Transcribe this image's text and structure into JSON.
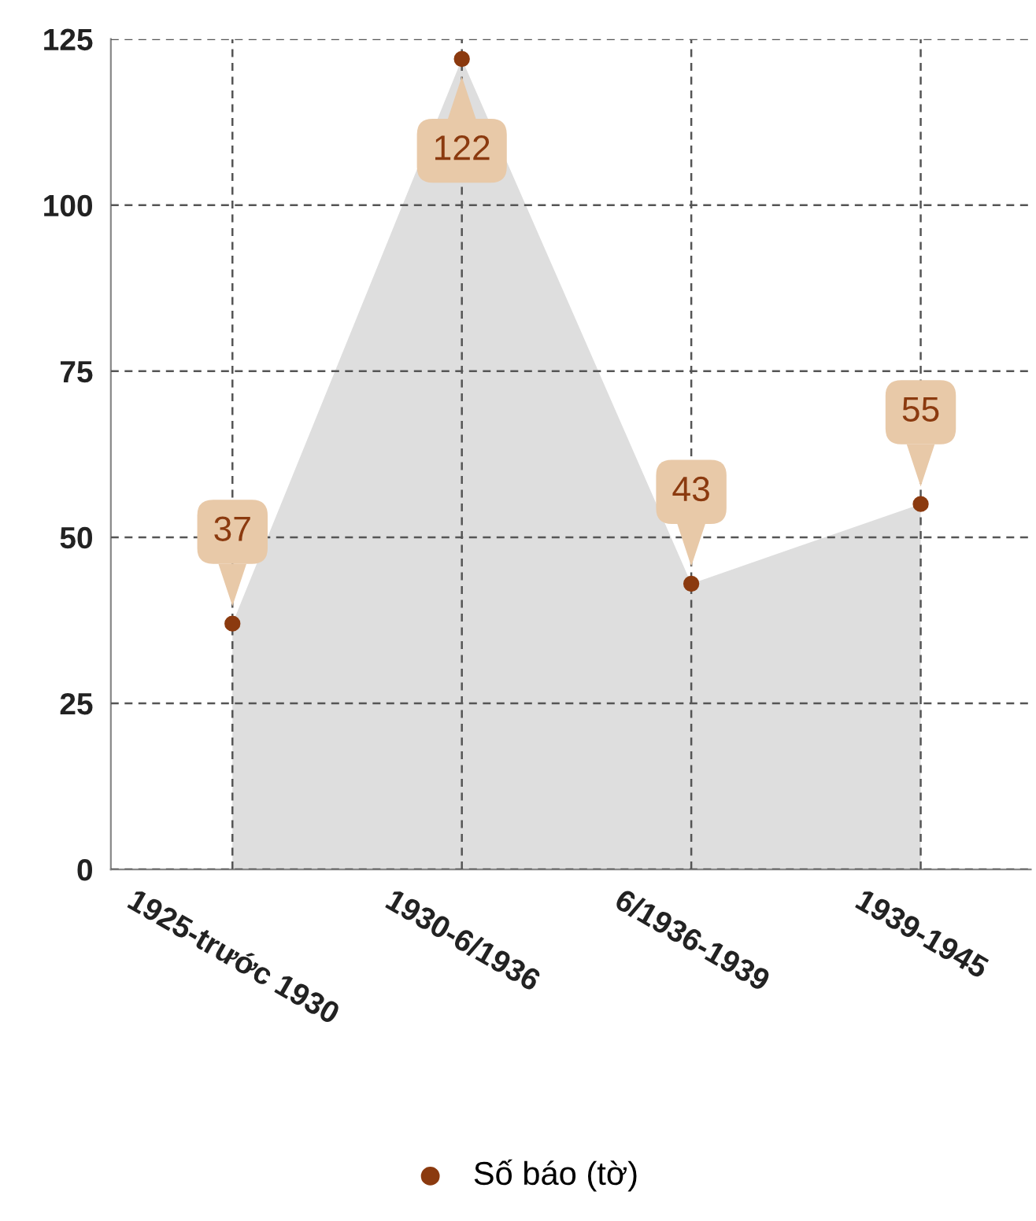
{
  "chart_data": {
    "type": "area",
    "categories": [
      "1925-trước 1930",
      "1930-6/1936",
      "6/1936-1939",
      "1939-1945"
    ],
    "series": [
      {
        "name": "Số báo (tờ)",
        "color": "#dedede",
        "colors": [
          "#8b3a0f",
          "#8b3a0f",
          "#8b3a0f",
          "#8b3a0f"
        ],
        "values": [
          37,
          122,
          43,
          55
        ]
      }
    ],
    "ylim": [
      0,
      125
    ],
    "yticks": [
      0,
      25,
      50,
      75,
      100,
      125
    ],
    "grid": true,
    "legend": "bottom",
    "marker": "circle",
    "data_labels": true
  }
}
